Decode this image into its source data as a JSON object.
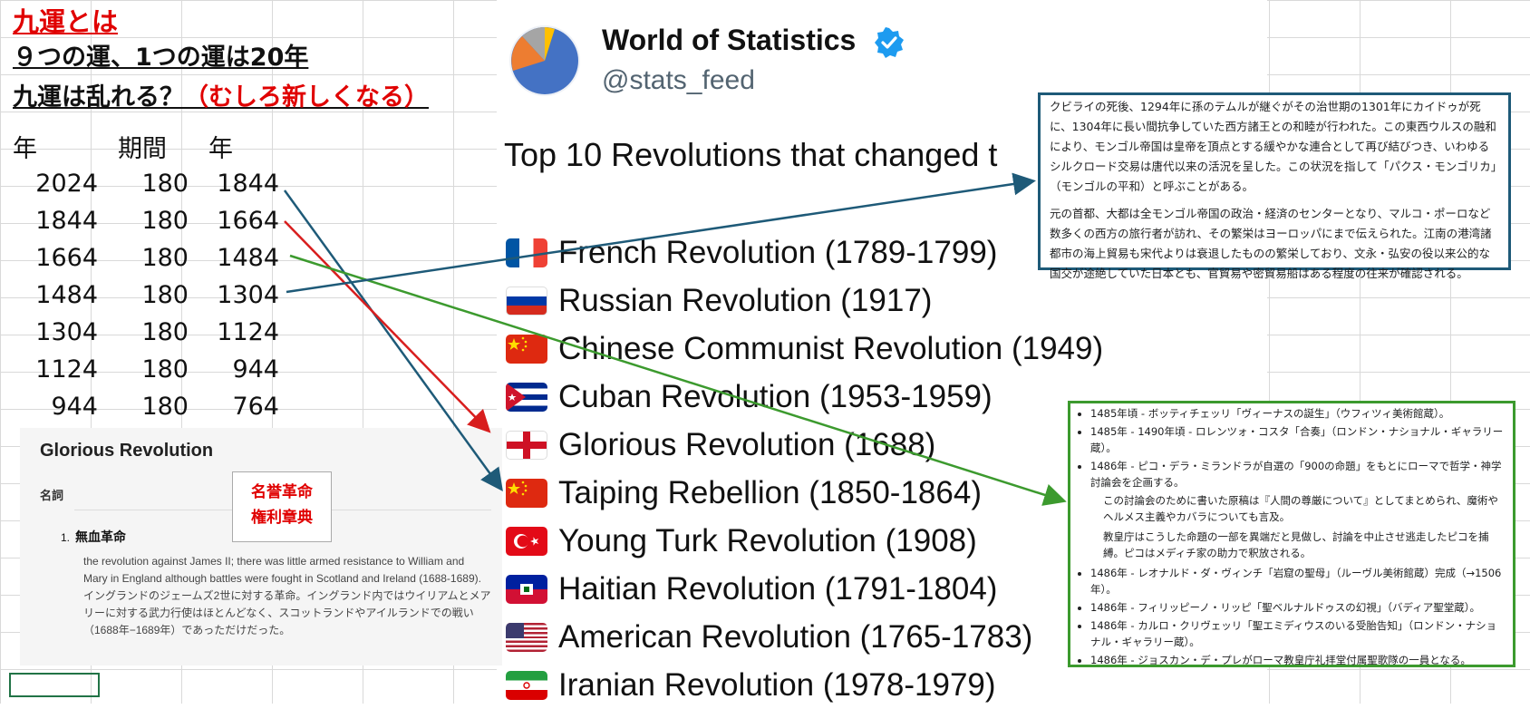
{
  "header": {
    "title": "九運とは",
    "line2": "９つの運、1つの運は20年",
    "line3_main": "九運は乱れる？",
    "line3_red": "（むしろ新しくなる）"
  },
  "sheet": {
    "headers": [
      "年",
      "期間",
      "年"
    ],
    "rows": [
      [
        "2024",
        "180",
        "1844"
      ],
      [
        "1844",
        "180",
        "1664"
      ],
      [
        "1664",
        "180",
        "1484"
      ],
      [
        "1484",
        "180",
        "1304"
      ],
      [
        "1304",
        "180",
        "1124"
      ],
      [
        "1124",
        "180",
        "944"
      ],
      [
        "944",
        "180",
        "764"
      ]
    ]
  },
  "tweet": {
    "account_name": "World of Statistics",
    "handle": "@stats_feed",
    "title": "Top 10 Revolutions that changed t",
    "revolutions": [
      {
        "label": "French Revolution (1789-1799)",
        "flag": "france-flag-icon"
      },
      {
        "label": "Russian Revolution (1917)",
        "flag": "russia-flag-icon"
      },
      {
        "label": "Chinese Communist Revolution (1949)",
        "flag": "china-flag-icon"
      },
      {
        "label": "Cuban Revolution (1953-1959)",
        "flag": "cuba-flag-icon"
      },
      {
        "label": "Glorious Revolution (1688)",
        "flag": "england-flag-icon"
      },
      {
        "label": "Taiping Rebellion (1850-1864)",
        "flag": "china-flag-icon"
      },
      {
        "label": "Young Turk Revolution (1908)",
        "flag": "turkey-flag-icon"
      },
      {
        "label": "Haitian Revolution (1791-1804)",
        "flag": "haiti-flag-icon"
      },
      {
        "label": "American Revolution (1765-1783)",
        "flag": "usa-flag-icon"
      },
      {
        "label": "Iranian Revolution (1978-1979)",
        "flag": "iran-flag-icon"
      }
    ]
  },
  "wiki_mongol": {
    "p1": "クビライの死後、1294年に孫のテムルが継ぐがその治世期の1301年にカイドゥが死に、1304年に長い間抗争していた西方諸王との和睦が行われた。この東西ウルスの融和により、モンゴル帝国は皇帝を頂点とする緩やかな連合として再び結びつき、いわゆるシルクロード交易は唐代以来の活況を呈した。この状況を指して「パクス・モンゴリカ」（モンゴルの平和）と呼ぶことがある。",
    "p2": "元の首都、大都は全モンゴル帝国の政治・経済のセンターとなり、マルコ・ポーロなど数多くの西方の旅行者が訪れ、その繁栄はヨーロッパにまで伝えられた。江南の港湾諸都市の海上貿易も宋代よりは衰退したものの繁栄しており、文永・弘安の役以来公的な国交が途絶していた日本とも、官貿易や密貿易船はある程度の往来が確認される。"
  },
  "wiki_renaissance": {
    "items": [
      "1485年頃 - ボッティチェッリ「ヴィーナスの誕生」（ウフィツィ美術館蔵）。",
      "1485年 - 1490年頃 - ロレンツォ・コスタ「合奏」（ロンドン・ナショナル・ギャラリー蔵）。",
      "1486年 - ピコ・デラ・ミランドラが自選の「900の命題」をもとにローマで哲学・神学討論会を企画する。"
    ],
    "sub1": "この討論会のために書いた原稿は『人間の尊厳について』としてまとめられ、魔術やヘルメス主義やカバラについても言及。",
    "sub2": "教皇庁はこうした命題の一部を異端だと見做し、討論を中止させ逃走したピコを捕縛。ピコはメディチ家の助力で釈放される。",
    "items2": [
      "1486年 - レオナルド・ダ・ヴィンチ「岩窟の聖母」（ルーヴル美術館蔵）完成（→1506年）。",
      "1486年 - フィリッピーノ・リッピ「聖ベルナルドゥスの幻視」（バディア聖堂蔵）。",
      "1486年 - カルロ・クリヴェッリ「聖エミディウスのいる受胎告知」（ロンドン・ナショナル・ギャラリー蔵）。",
      "1486年 - ジョスカン・デ・プレがローマ教皇庁礼拝堂付属聖歌隊の一員となる。"
    ]
  },
  "dictionary": {
    "title": "Glorious Revolution",
    "pos": "名詞",
    "sense_num": "1.",
    "sense": "無血革命",
    "def_en": "the revolution against James II; there was little armed resistance to William and Mary in England although battles were fought in Scotland and Ireland (1688-1689).",
    "def_jp": "イングランドのジェームズ2世に対する革命。イングランド内ではウイリアムとメアリーに対する武力行使はほとんどなく、スコットランドやアイルランドでの戦い（1688年−1689年）であっただけだった。"
  },
  "note": {
    "line1": "名誉革命",
    "line2": "権利章典"
  },
  "colors": {
    "red": "#e00000",
    "arrow_blue": "#1e5a78",
    "arrow_green": "#3c9a2e",
    "arrow_red": "#d81e1e",
    "verified": "#1d9bf0"
  }
}
